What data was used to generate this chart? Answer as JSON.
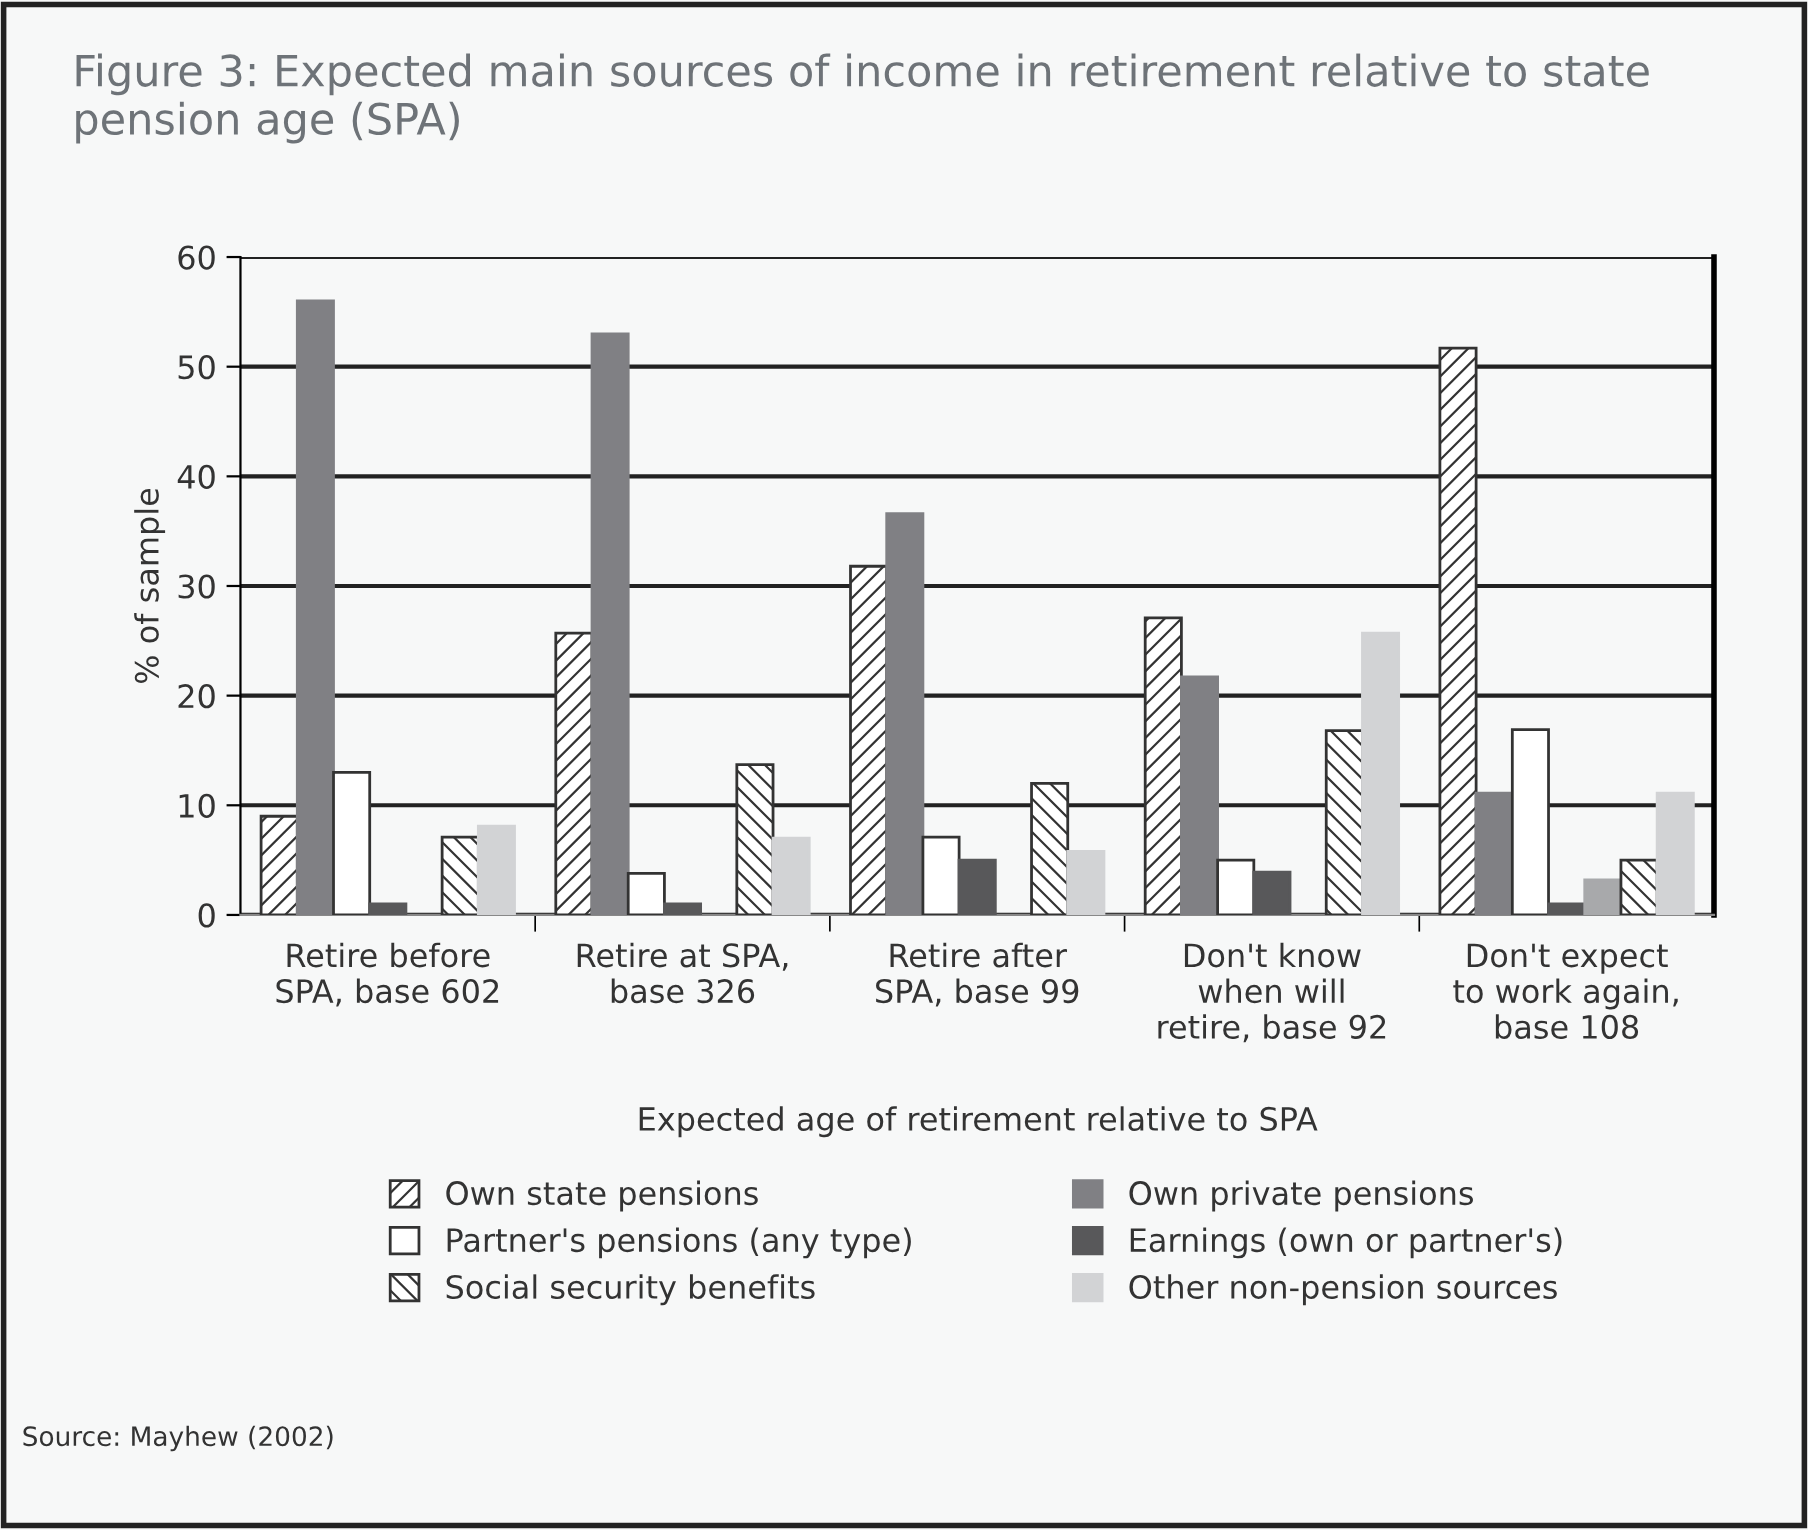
{
  "chart_data": {
    "type": "bar",
    "title": "Figure 3: Expected main sources of income in retirement relative to state pension age (SPA)",
    "xlabel": "Expected age of retirement relative to SPA",
    "ylabel": "% of sample",
    "categories": [
      "Retire before\nSPA, base 602",
      "Retire at SPA,\nbase 326",
      "Retire after\nSPA, base 99",
      "Don't know\nwhen will\nretire, base 92",
      "Don't expect\nto work again,\nbase 108"
    ],
    "series": [
      {
        "name": "Own state pensions",
        "color": "#333333",
        "values": [
          9,
          25.7,
          31.8,
          27.1,
          51.7
        ]
      },
      {
        "name": "Own private pensions",
        "color": "#808084",
        "values": [
          56,
          53,
          36.6,
          21.7,
          11.1
        ]
      },
      {
        "name": "Partner's pensions (any type)",
        "color": "#ffffff",
        "values": [
          13,
          3.8,
          7.1,
          5,
          16.9
        ]
      },
      {
        "name": "Earnings (own or partner's)",
        "color": "#58585a",
        "values": [
          1,
          1,
          5,
          3.9,
          1
        ]
      },
      {
        "color": "#a8a9ab",
        "values": [
          null,
          null,
          null,
          null,
          3.2
        ]
      },
      {
        "name": "Social security benefits",
        "color": "#333333",
        "values": [
          7.1,
          13.7,
          12,
          16.8,
          5
        ]
      },
      {
        "name": "Other non-pension sources",
        "color": "#d2d3d5",
        "values": [
          8.1,
          7,
          5.8,
          25.7,
          11.1
        ]
      }
    ],
    "ylim": [
      0,
      60
    ],
    "yticks": [
      0,
      10,
      20,
      30,
      40,
      50,
      60
    ],
    "grid": "y",
    "legend": "bottom",
    "annotations": [
      "Source: Mayhew (2002)"
    ]
  }
}
